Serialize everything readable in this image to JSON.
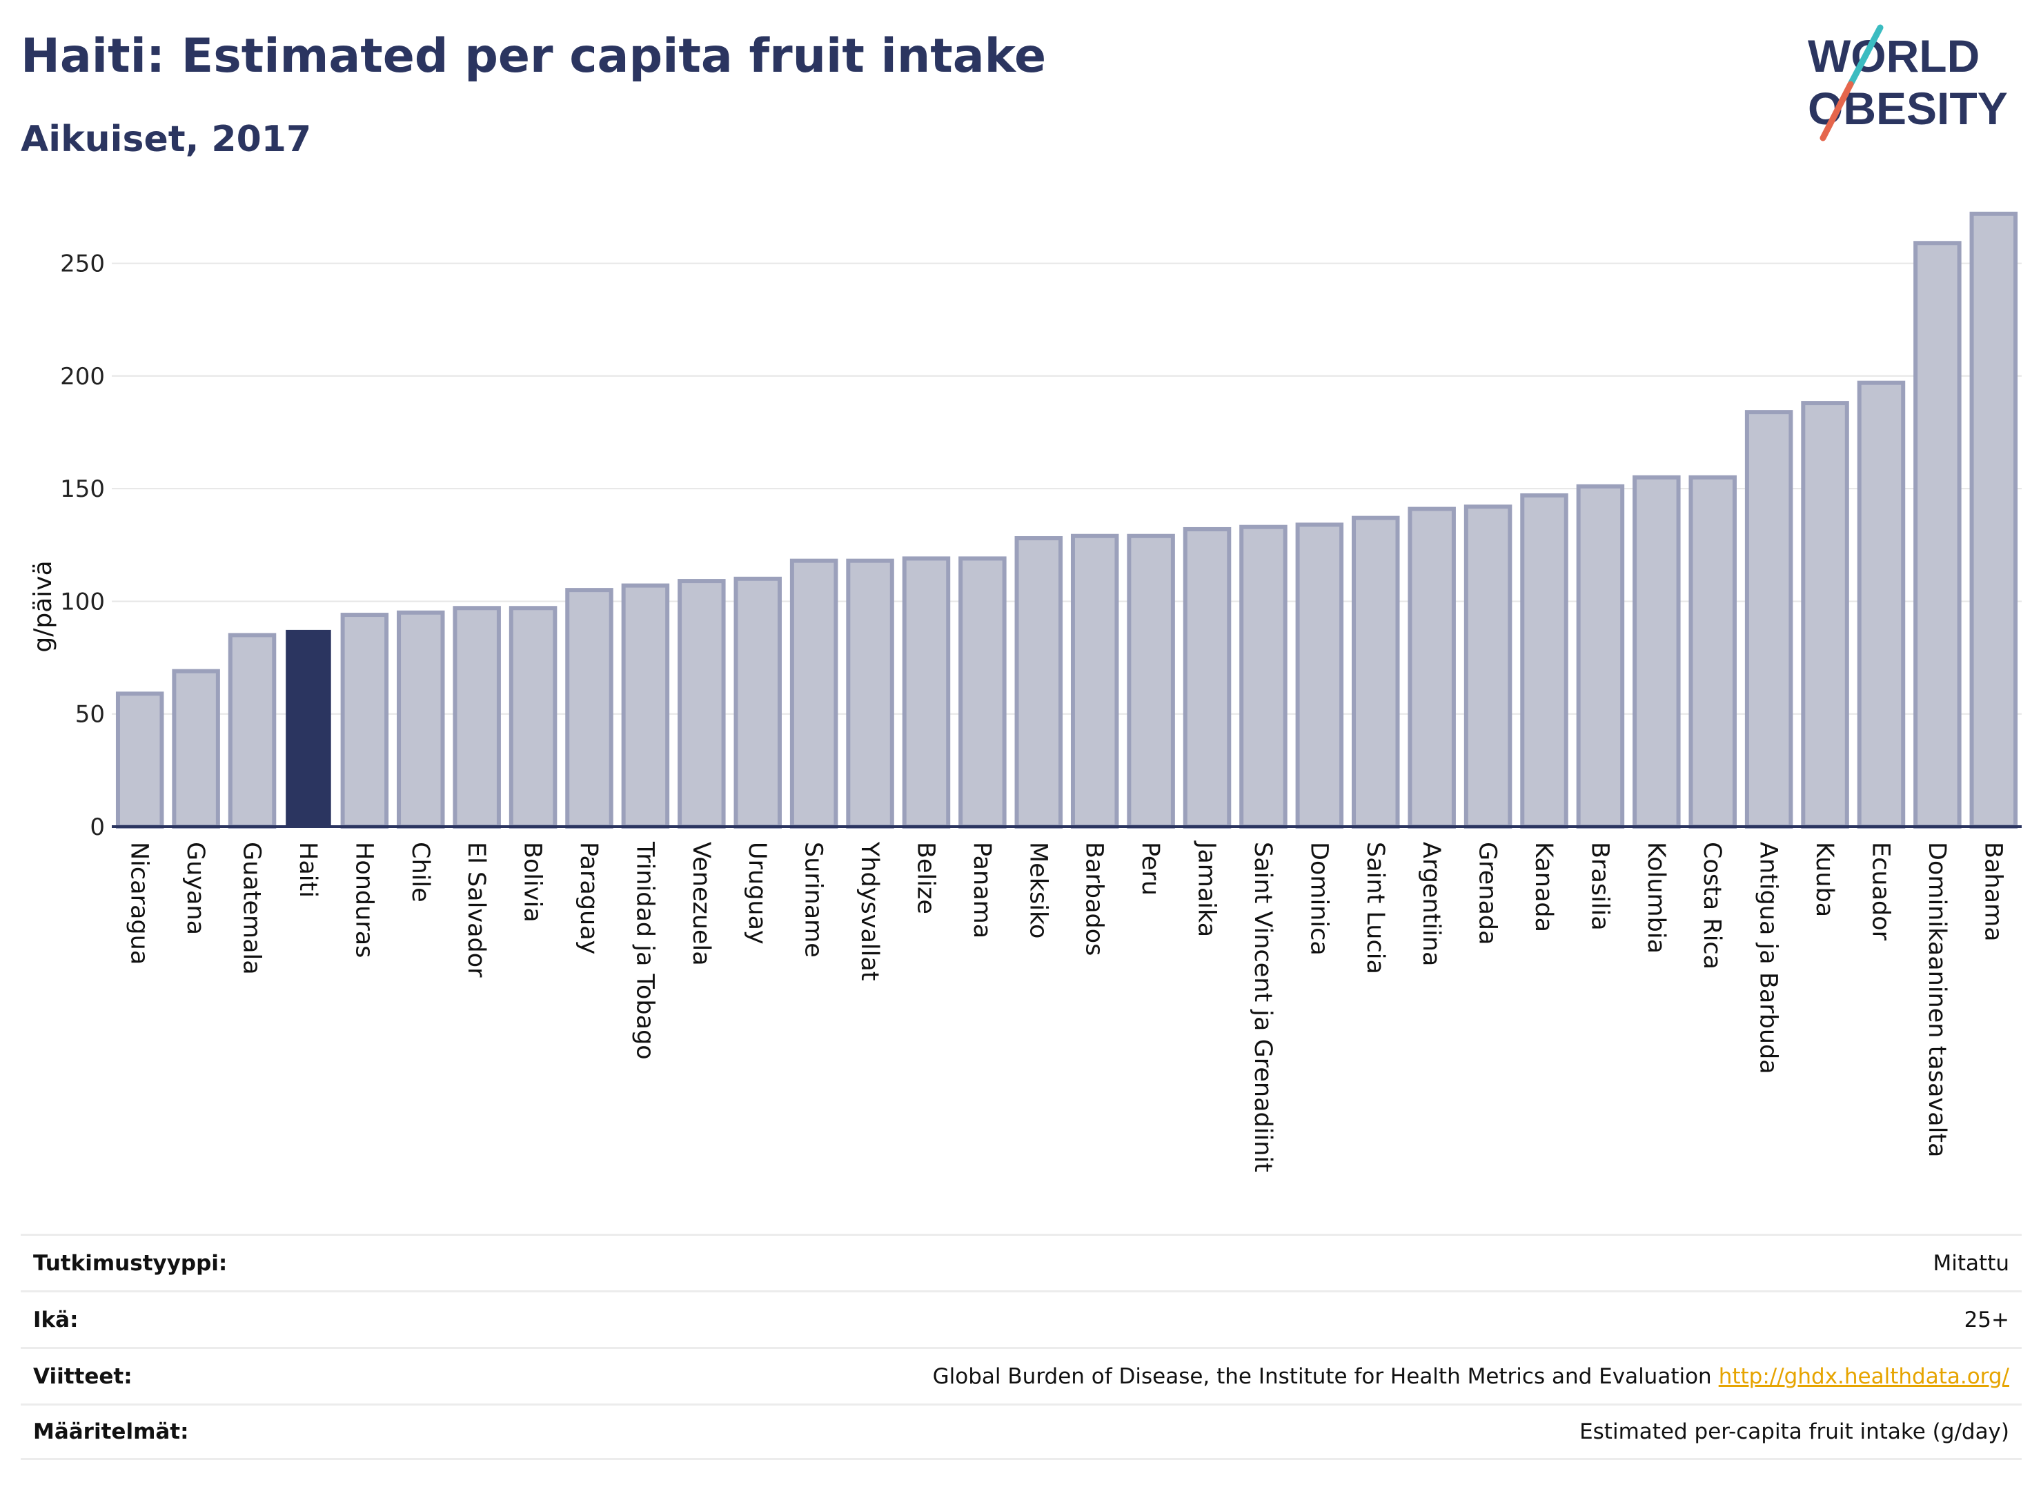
{
  "header": {
    "title": "Haiti: Estimated per capita fruit intake",
    "subtitle": "Aikuiset, 2017"
  },
  "logo": {
    "line1": "WORLD",
    "line2": "OBESITY",
    "colors": {
      "text": "#2b3560",
      "slash_teal": "#3bbcc1",
      "slash_red": "#e5664c"
    }
  },
  "chart_data": {
    "type": "bar",
    "ylabel": "g/päivä",
    "ylim": [
      0,
      275
    ],
    "yticks": [
      0,
      50,
      100,
      150,
      200,
      250
    ],
    "grid": true,
    "highlight": "Haiti",
    "colors": {
      "bar": "#c0c3d1",
      "bar_edge": "#9ba0bb",
      "highlight": "#2b3560",
      "axis": "#2b3560",
      "grid": "#e6e6e6"
    },
    "categories": [
      "Nicaragua",
      "Guyana",
      "Guatemala",
      "Haiti",
      "Honduras",
      "Chile",
      "El Salvador",
      "Bolivia",
      "Paraguay",
      "Trinidad ja Tobago",
      "Venezuela",
      "Uruguay",
      "Suriname",
      "Yhdysvallat",
      "Belize",
      "Panama",
      "Meksiko",
      "Barbados",
      "Peru",
      "Jamaika",
      "Saint Vincent ja Grenadiinit",
      "Dominica",
      "Saint Lucia",
      "Argentiina",
      "Grenada",
      "Kanada",
      "Brasilia",
      "Kolumbia",
      "Costa Rica",
      "Antigua ja Barbuda",
      "Kuuba",
      "Ecuador",
      "Dominikaaninen tasavalta",
      "Bahama"
    ],
    "values": [
      59,
      69,
      85,
      87,
      94,
      95,
      97,
      97,
      105,
      107,
      109,
      110,
      118,
      118,
      119,
      119,
      128,
      129,
      129,
      132,
      133,
      134,
      137,
      141,
      142,
      147,
      151,
      155,
      155,
      184,
      188,
      197,
      259,
      272
    ]
  },
  "meta": [
    {
      "key": "Tutkimustyyppi:",
      "value": "Mitattu"
    },
    {
      "key": "Ikä:",
      "value": "25+"
    },
    {
      "key": "Viitteet:",
      "value": "Global Burden of Disease, the Institute for Health Metrics and Evaluation",
      "link": "http://ghdx.healthdata.org/"
    },
    {
      "key": "Määritelmät:",
      "value": "Estimated per-capita fruit intake (g/day)"
    }
  ]
}
